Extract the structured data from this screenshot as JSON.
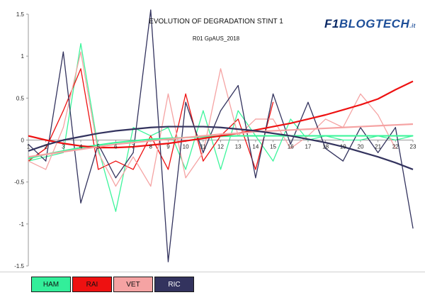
{
  "brand": {
    "f1": "F1",
    "name": "BLOGTECH",
    "domain": ".it"
  },
  "chart_data": {
    "type": "line",
    "title": "EVOLUTION OF DEGRADATION STINT 1",
    "subtitle": "R01 GpAUS_2018",
    "x": [
      1,
      2,
      3,
      4,
      5,
      6,
      7,
      8,
      9,
      10,
      11,
      12,
      13,
      14,
      15,
      16,
      17,
      18,
      19,
      20,
      21,
      22,
      23
    ],
    "xlim": [
      1,
      23
    ],
    "ylim": [
      -1.5,
      1.5
    ],
    "yticks": [
      1.5,
      1,
      0.5,
      0,
      -0.5,
      -1,
      -1.5
    ],
    "ytick_labels": [
      "1.5",
      "1",
      "0.5",
      "0",
      "-0.5",
      "-1",
      "-1.5"
    ],
    "xtick_labels": [
      "1",
      "2",
      "3",
      "4",
      "5",
      "6",
      "7",
      "8",
      "9",
      "10",
      "11",
      "12",
      "13",
      "14",
      "15",
      "16",
      "17",
      "18",
      "19",
      "20",
      "21",
      "22",
      "23"
    ],
    "grid": false,
    "legend_position": "bottom-left",
    "series": [
      {
        "name": "HAM",
        "color": "#3df59b",
        "values": [
          -0.25,
          -0.2,
          -0.15,
          1.15,
          -0.1,
          -0.85,
          0.15,
          0.05,
          0.15,
          -0.35,
          0.35,
          -0.35,
          0.35,
          0.05,
          -0.25,
          0.25,
          0.0,
          0.05,
          0.0,
          0.0,
          0.05,
          0.0,
          0.05
        ],
        "trend": [
          -0.22,
          -0.17,
          -0.13,
          -0.09,
          -0.06,
          -0.03,
          -0.01,
          0.01,
          0.02,
          0.03,
          0.04,
          0.045,
          0.05,
          0.05,
          0.05,
          0.05,
          0.05,
          0.05,
          0.05,
          0.05,
          0.05,
          0.05,
          0.05
        ]
      },
      {
        "name": "RAI",
        "color": "#ee1111",
        "values": [
          -0.25,
          -0.1,
          0.35,
          0.85,
          -0.35,
          -0.25,
          -0.35,
          0.05,
          -0.35,
          0.55,
          -0.25,
          0.05,
          0.25,
          -0.35,
          0.45,
          null,
          null,
          null,
          null,
          null,
          null,
          null,
          null
        ],
        "trend": [
          0.05,
          0.0,
          -0.04,
          -0.07,
          -0.09,
          -0.09,
          -0.08,
          -0.06,
          -0.04,
          -0.01,
          0.02,
          0.05,
          0.08,
          0.12,
          0.16,
          0.2,
          0.25,
          0.3,
          0.36,
          0.42,
          0.49,
          0.6,
          0.7
        ]
      },
      {
        "name": "VET",
        "color": "#f5a3a3",
        "values": [
          -0.25,
          -0.35,
          0.15,
          1.05,
          -0.15,
          -0.55,
          -0.2,
          -0.55,
          0.55,
          -0.45,
          -0.15,
          0.85,
          0.05,
          0.25,
          0.25,
          -0.1,
          0.05,
          0.25,
          0.15,
          0.55,
          0.3,
          -0.1,
          null
        ],
        "trend": [
          -0.2,
          -0.17,
          -0.14,
          -0.11,
          -0.08,
          -0.05,
          -0.03,
          -0.01,
          0.01,
          0.03,
          0.05,
          0.07,
          0.08,
          0.1,
          0.11,
          0.12,
          0.13,
          0.14,
          0.15,
          0.16,
          0.17,
          0.18,
          0.19
        ]
      },
      {
        "name": "RIC",
        "color": "#33335e",
        "values": [
          -0.05,
          -0.25,
          1.05,
          -0.75,
          -0.05,
          -0.45,
          -0.15,
          1.55,
          -1.45,
          0.45,
          -0.15,
          0.35,
          0.65,
          -0.45,
          0.55,
          -0.05,
          0.45,
          -0.1,
          -0.25,
          0.15,
          -0.15,
          0.15,
          -1.05
        ],
        "trend": [
          -0.13,
          -0.06,
          0.0,
          0.04,
          0.08,
          0.11,
          0.13,
          0.15,
          0.16,
          0.16,
          0.16,
          0.15,
          0.13,
          0.11,
          0.08,
          0.05,
          0.01,
          -0.03,
          -0.08,
          -0.14,
          -0.2,
          -0.27,
          -0.35
        ]
      }
    ]
  },
  "legend": [
    {
      "label": "HAM",
      "bg": "#33ee9a",
      "dark": false
    },
    {
      "label": "RAI",
      "bg": "#ee1111",
      "dark": false
    },
    {
      "label": "VET",
      "bg": "#f5a3a3",
      "dark": false
    },
    {
      "label": "RIC",
      "bg": "#33335e",
      "dark": true
    }
  ]
}
